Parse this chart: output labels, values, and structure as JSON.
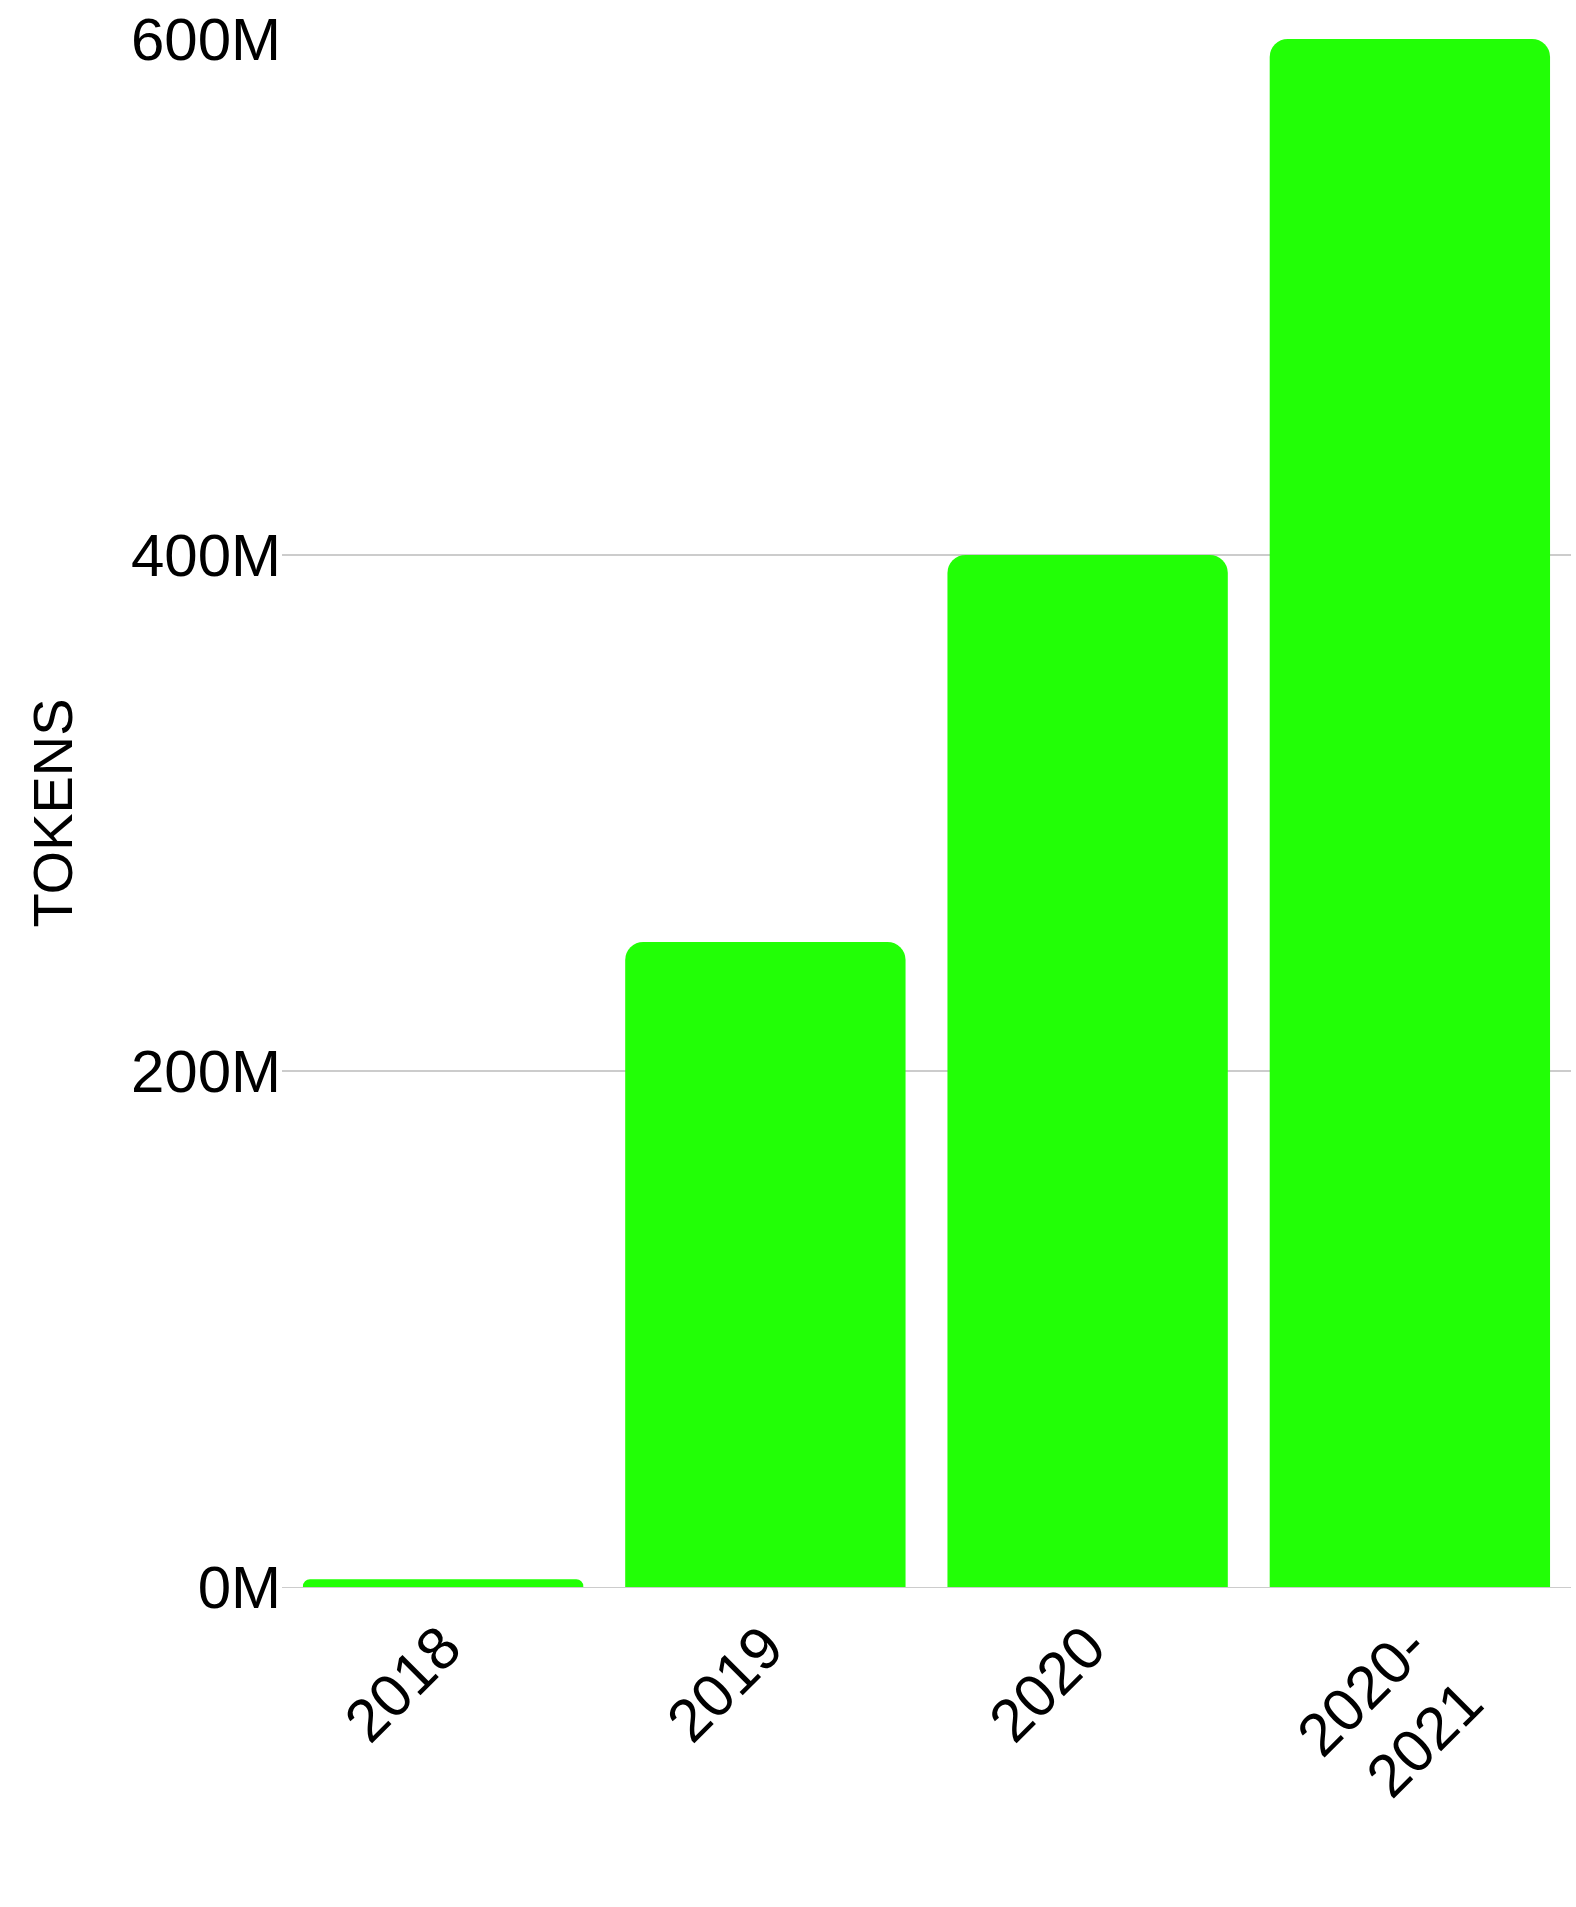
{
  "chart_data": {
    "type": "bar",
    "ylabel": "TOKENS",
    "categories": [
      "2018",
      "2019",
      "2020",
      "2020-\n2021"
    ],
    "values": [
      3,
      250,
      400,
      600
    ],
    "color": "#22ff06",
    "ylim": [
      0,
      600
    ],
    "yticks": [
      {
        "value": 0,
        "label": "0M"
      },
      {
        "value": 200,
        "label": "200M"
      },
      {
        "value": 400,
        "label": "400M"
      },
      {
        "value": 600,
        "label": "600M"
      }
    ],
    "grid": "y"
  }
}
